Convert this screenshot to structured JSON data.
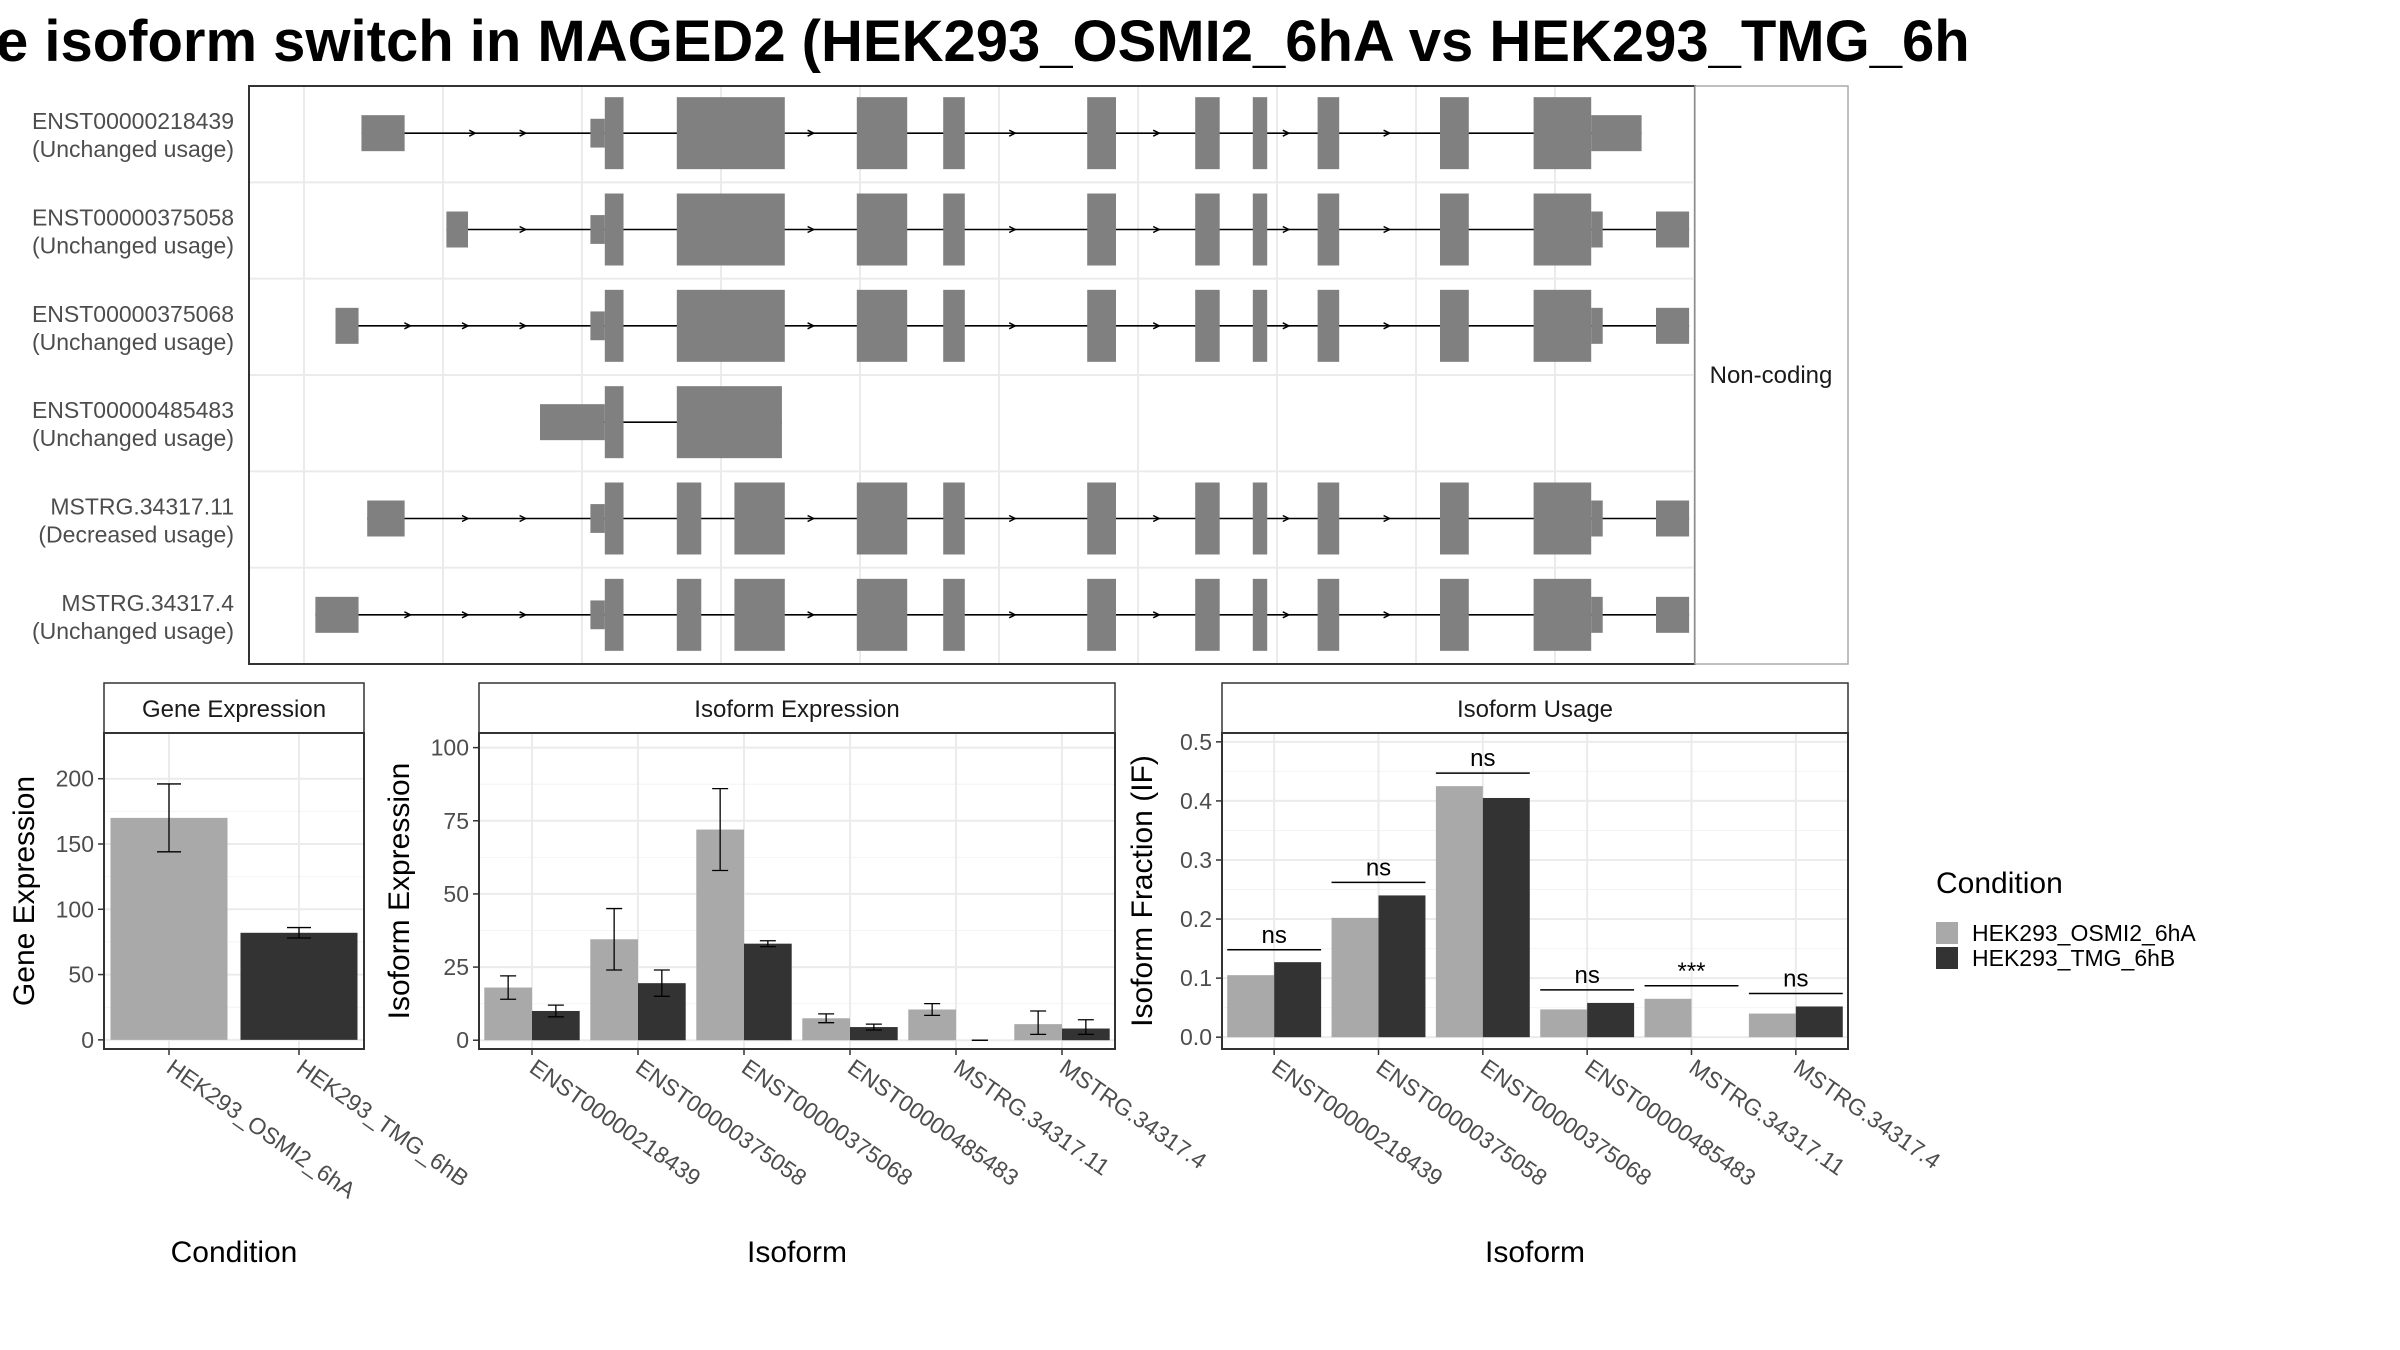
{
  "title": "e isoform switch in MAGED2 (HEK293_OSMI2_6hA vs HEK293_TMG_6h",
  "colors": {
    "exon": "#808080",
    "cond1": "#A9A9A9",
    "cond2": "#333333",
    "strip_bg": "#ffffff",
    "grid": "#ebebeb",
    "panel_border": "#333333"
  },
  "legend": {
    "title": "Condition",
    "items": [
      "HEK293_OSMI2_6hA",
      "HEK293_TMG_6hB"
    ]
  },
  "chart_data": [
    {
      "type": "diagram",
      "facet_label": "Non-coding",
      "x_range": [
        0,
        100
      ],
      "transcripts": [
        {
          "name": "ENST00000218439",
          "status": "(Unchanged usage)",
          "exons": [
            [
              7.6,
              10.6,
              0.5
            ],
            [
              23.5,
              24.5,
              0.4
            ],
            [
              24.5,
              25.8,
              1
            ],
            [
              29.5,
              37.0,
              1
            ],
            [
              42.0,
              45.5,
              1
            ],
            [
              48.0,
              49.5,
              1
            ],
            [
              58.0,
              60.0,
              1
            ],
            [
              65.5,
              67.2,
              1
            ],
            [
              69.5,
              70.5,
              1
            ],
            [
              74.0,
              75.5,
              1
            ],
            [
              82.5,
              84.5,
              1
            ],
            [
              89.0,
              93.0,
              1
            ],
            [
              93.0,
              96.5,
              0.5
            ]
          ],
          "arrows": [
            15.5,
            19.0,
            39.0,
            53.0,
            63.0,
            72.0,
            79.0
          ]
        },
        {
          "name": "ENST00000375058",
          "status": "(Unchanged usage)",
          "exons": [
            [
              13.5,
              15.0,
              0.5
            ],
            [
              23.5,
              24.5,
              0.4
            ],
            [
              24.5,
              25.8,
              1
            ],
            [
              29.5,
              37.0,
              1
            ],
            [
              42.0,
              45.5,
              1
            ],
            [
              48.0,
              49.5,
              1
            ],
            [
              58.0,
              60.0,
              1
            ],
            [
              65.5,
              67.2,
              1
            ],
            [
              69.5,
              70.5,
              1
            ],
            [
              74.0,
              75.5,
              1
            ],
            [
              82.5,
              84.5,
              1
            ],
            [
              89.0,
              93.0,
              1
            ],
            [
              93.0,
              93.8,
              0.5
            ],
            [
              97.5,
              99.8,
              0.5
            ]
          ],
          "arrows": [
            19.0,
            39.0,
            53.0,
            63.0,
            72.0,
            79.0
          ]
        },
        {
          "name": "ENST00000375068",
          "status": "(Unchanged usage)",
          "exons": [
            [
              5.8,
              7.4,
              0.5
            ],
            [
              23.5,
              24.5,
              0.4
            ],
            [
              24.5,
              25.8,
              1
            ],
            [
              29.5,
              37.0,
              1
            ],
            [
              42.0,
              45.5,
              1
            ],
            [
              48.0,
              49.5,
              1
            ],
            [
              58.0,
              60.0,
              1
            ],
            [
              65.5,
              67.2,
              1
            ],
            [
              69.5,
              70.5,
              1
            ],
            [
              74.0,
              75.5,
              1
            ],
            [
              82.5,
              84.5,
              1
            ],
            [
              89.0,
              93.0,
              1
            ],
            [
              93.0,
              93.8,
              0.5
            ],
            [
              97.5,
              99.8,
              0.5
            ]
          ],
          "arrows": [
            11.0,
            15.0,
            19.0,
            39.0,
            53.0,
            63.0,
            72.0,
            79.0
          ]
        },
        {
          "name": "ENST00000485483",
          "status": "(Unchanged usage)",
          "exons": [
            [
              20.0,
              24.5,
              0.5
            ],
            [
              24.5,
              25.8,
              1
            ],
            [
              29.5,
              36.8,
              1
            ]
          ],
          "arrows": []
        },
        {
          "name": "MSTRG.34317.11",
          "status": "(Decreased usage)",
          "exons": [
            [
              8.0,
              10.6,
              0.5
            ],
            [
              23.5,
              24.5,
              0.4
            ],
            [
              24.5,
              25.8,
              1
            ],
            [
              29.5,
              31.2,
              1
            ],
            [
              33.5,
              37.0,
              1
            ],
            [
              42.0,
              45.5,
              1
            ],
            [
              48.0,
              49.5,
              1
            ],
            [
              58.0,
              60.0,
              1
            ],
            [
              65.5,
              67.2,
              1
            ],
            [
              69.5,
              70.5,
              1
            ],
            [
              74.0,
              75.5,
              1
            ],
            [
              82.5,
              84.5,
              1
            ],
            [
              89.0,
              93.0,
              1
            ],
            [
              93.0,
              93.8,
              0.5
            ],
            [
              97.5,
              99.8,
              0.5
            ]
          ],
          "arrows": [
            15.0,
            19.0,
            39.0,
            53.0,
            63.0,
            72.0,
            79.0
          ]
        },
        {
          "name": "MSTRG.34317.4",
          "status": "(Unchanged usage)",
          "exons": [
            [
              4.4,
              7.4,
              0.5
            ],
            [
              23.5,
              24.5,
              0.4
            ],
            [
              24.5,
              25.8,
              1
            ],
            [
              29.5,
              31.2,
              1
            ],
            [
              33.5,
              37.0,
              1
            ],
            [
              42.0,
              45.5,
              1
            ],
            [
              48.0,
              49.5,
              1
            ],
            [
              58.0,
              60.0,
              1
            ],
            [
              65.5,
              67.2,
              1
            ],
            [
              69.5,
              70.5,
              1
            ],
            [
              74.0,
              75.5,
              1
            ],
            [
              82.5,
              84.5,
              1
            ],
            [
              89.0,
              93.0,
              1
            ],
            [
              93.0,
              93.8,
              0.5
            ],
            [
              97.5,
              99.8,
              0.5
            ]
          ],
          "arrows": [
            11.0,
            15.0,
            19.0,
            39.0,
            53.0,
            63.0,
            72.0,
            79.0
          ]
        }
      ]
    },
    {
      "type": "bar",
      "strip": "Gene Expression",
      "xlabel": "Condition",
      "ylabel": "Gene Expression",
      "categories": [
        "HEK293_OSMI2_6hA",
        "HEK293_TMG_6hB"
      ],
      "values": [
        170,
        82
      ],
      "err_low": [
        144,
        78
      ],
      "err_high": [
        196,
        86
      ],
      "ylim": [
        -7,
        235
      ],
      "yticks": [
        0,
        50,
        100,
        150,
        200
      ]
    },
    {
      "type": "bar",
      "strip": "Isoform Expression",
      "xlabel": "Isoform",
      "ylabel": "Isoform Expression",
      "categories": [
        "ENST00000218439",
        "ENST00000375058",
        "ENST00000375068",
        "ENST00000485483",
        "MSTRG.34317.11",
        "MSTRG.34317.4"
      ],
      "series": [
        {
          "values": [
            18,
            34.5,
            72,
            7.5,
            10.5,
            5.5
          ],
          "err_low": [
            14,
            24,
            58,
            6,
            8.5,
            2
          ],
          "err_high": [
            22,
            45,
            86,
            9,
            12.5,
            10
          ]
        },
        {
          "values": [
            10,
            19.5,
            33,
            4.5,
            0,
            4
          ],
          "err_low": [
            8,
            15,
            32,
            3.5,
            0,
            2
          ],
          "err_high": [
            12,
            24,
            34,
            5.5,
            0,
            7
          ]
        }
      ],
      "ylim": [
        -3,
        105
      ],
      "yticks": [
        0,
        25,
        50,
        75,
        100
      ]
    },
    {
      "type": "bar",
      "strip": "Isoform Usage",
      "xlabel": "Isoform",
      "ylabel": "Isoform Fraction (IF)",
      "categories": [
        "ENST00000218439",
        "ENST00000375058",
        "ENST00000375068",
        "ENST00000485483",
        "MSTRG.34317.11",
        "MSTRG.34317.4"
      ],
      "series": [
        {
          "values": [
            0.105,
            0.202,
            0.425,
            0.047,
            0.065,
            0.04
          ]
        },
        {
          "values": [
            0.127,
            0.24,
            0.405,
            0.058,
            0.0,
            0.052
          ]
        }
      ],
      "significance": [
        "ns",
        "ns",
        "ns",
        "ns",
        "***",
        "ns"
      ],
      "sig_y": [
        0.148,
        0.262,
        0.447,
        0.08,
        0.087,
        0.074
      ],
      "ylim": [
        -0.02,
        0.515
      ],
      "yticks": [
        0.0,
        0.1,
        0.2,
        0.3,
        0.4,
        0.5
      ],
      "ytick_labels": [
        "0.0",
        "0.1",
        "0.2",
        "0.3",
        "0.4",
        "0.5"
      ]
    }
  ]
}
